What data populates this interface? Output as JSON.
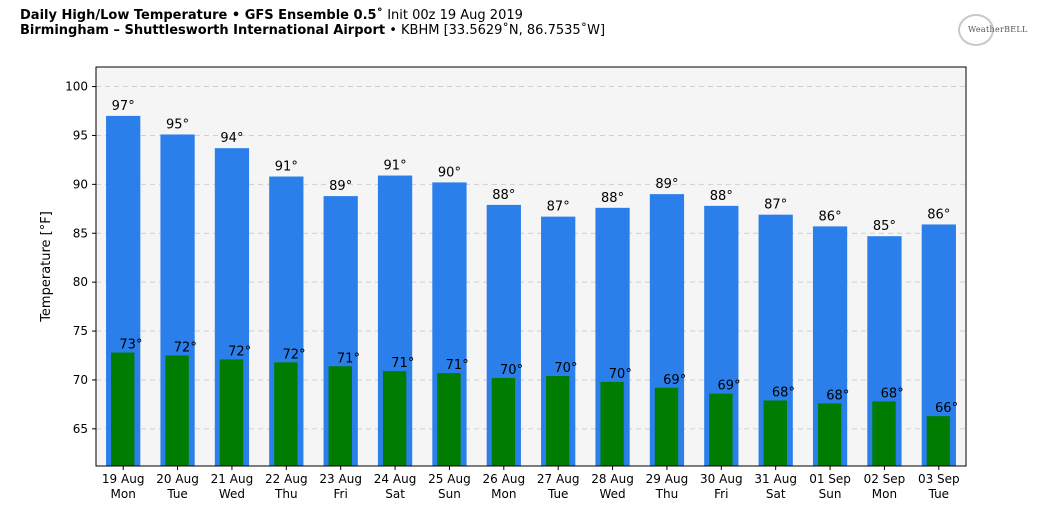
{
  "header": {
    "title_bold": "Daily High/Low Temperature • GFS Ensemble 0.5˚",
    "title_rest": " Init 00z 19 Aug 2019",
    "subtitle_bold": "Birmingham – Shuttlesworth International Airport",
    "subtitle_rest": " • KBHM [33.5629˚N, 86.7535˚W]"
  },
  "logo": {
    "text": "WeatherBELL"
  },
  "colors": {
    "high": "#2b7fea",
    "low": "#007d00",
    "plot_bg": "#f5f5f5",
    "grid": "#cfcfcf"
  },
  "chart_data": {
    "type": "bar",
    "title": "Daily High/Low Temperature • GFS Ensemble 0.5˚ Init 00z 19 Aug 2019",
    "ylabel": "Temperature [°F]",
    "xlabel": "",
    "ylim": [
      61.2,
      102
    ],
    "yticks": [
      65,
      70,
      75,
      80,
      85,
      90,
      95,
      100
    ],
    "grid": true,
    "categories": [
      "19 Aug",
      "20 Aug",
      "21 Aug",
      "22 Aug",
      "23 Aug",
      "24 Aug",
      "25 Aug",
      "26 Aug",
      "27 Aug",
      "28 Aug",
      "29 Aug",
      "30 Aug",
      "31 Aug",
      "01 Sep",
      "02 Sep",
      "03 Sep"
    ],
    "weekdays": [
      "Mon",
      "Tue",
      "Wed",
      "Thu",
      "Fri",
      "Sat",
      "Sun",
      "Mon",
      "Tue",
      "Wed",
      "Thu",
      "Fri",
      "Sat",
      "Sun",
      "Mon",
      "Tue"
    ],
    "series": [
      {
        "values": [
          97.0,
          95.1,
          93.7,
          90.8,
          88.8,
          90.9,
          90.2,
          87.9,
          86.7,
          87.6,
          89.0,
          87.8,
          86.9,
          85.7,
          84.7,
          85.9
        ],
        "labels": [
          "97°",
          "95°",
          "94°",
          "91°",
          "89°",
          "91°",
          "90°",
          "88°",
          "87°",
          "88°",
          "89°",
          "88°",
          "87°",
          "86°",
          "85°",
          "86°"
        ]
      },
      {
        "values": [
          72.8,
          72.5,
          72.1,
          71.8,
          71.4,
          70.9,
          70.7,
          70.2,
          70.4,
          69.8,
          69.2,
          68.6,
          67.9,
          67.6,
          67.8,
          66.3
        ],
        "labels": [
          "73°",
          "72°",
          "72°",
          "72°",
          "71°",
          "71°",
          "71°",
          "70°",
          "70°",
          "70°",
          "69°",
          "69°",
          "68°",
          "68°",
          "68°",
          "66°"
        ]
      }
    ]
  }
}
